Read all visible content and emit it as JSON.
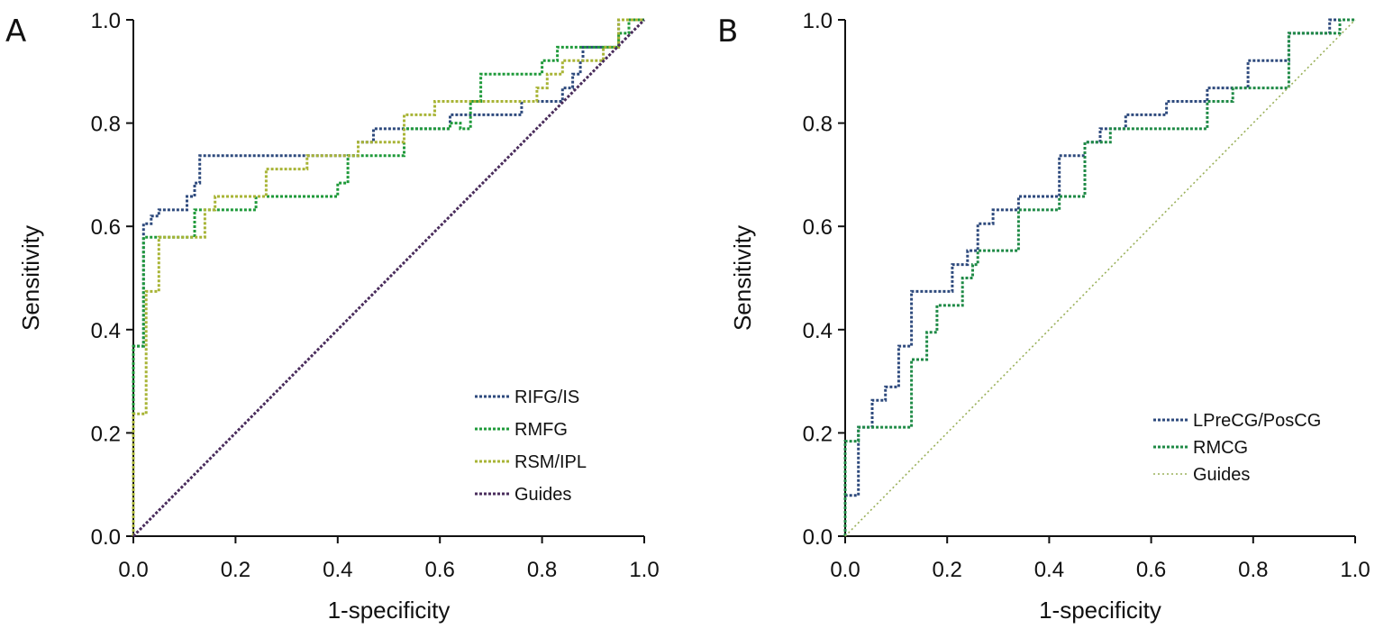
{
  "chart_data": [
    {
      "panel_label": "A",
      "type": "line",
      "xlabel": "1-specificity",
      "ylabel": "Sensitivity",
      "xlim": [
        0,
        1
      ],
      "ylim": [
        0,
        1
      ],
      "ticks": [
        "0.0",
        "0.2",
        "0.4",
        "0.6",
        "0.8",
        "1.0"
      ],
      "legend_position": "bottom-right",
      "grid": false,
      "series": [
        {
          "name": "RIFG/IS",
          "color": "#2e4a7d",
          "points": [
            [
              0,
              0
            ],
            [
              0,
              0.368
            ],
            [
              0.02,
              0.368
            ],
            [
              0.02,
              0.605
            ],
            [
              0.035,
              0.605
            ],
            [
              0.035,
              0.62
            ],
            [
              0.05,
              0.62
            ],
            [
              0.05,
              0.632
            ],
            [
              0.105,
              0.632
            ],
            [
              0.105,
              0.658
            ],
            [
              0.12,
              0.658
            ],
            [
              0.12,
              0.684
            ],
            [
              0.13,
              0.684
            ],
            [
              0.13,
              0.737
            ],
            [
              0.44,
              0.737
            ],
            [
              0.44,
              0.763
            ],
            [
              0.47,
              0.763
            ],
            [
              0.47,
              0.789
            ],
            [
              0.62,
              0.789
            ],
            [
              0.62,
              0.816
            ],
            [
              0.76,
              0.816
            ],
            [
              0.76,
              0.842
            ],
            [
              0.84,
              0.842
            ],
            [
              0.84,
              0.868
            ],
            [
              0.86,
              0.868
            ],
            [
              0.86,
              0.895
            ],
            [
              0.875,
              0.895
            ],
            [
              0.875,
              0.921
            ],
            [
              0.88,
              0.921
            ],
            [
              0.88,
              0.947
            ],
            [
              0.95,
              0.947
            ],
            [
              0.95,
              1
            ],
            [
              1,
              1
            ]
          ]
        },
        {
          "name": "RMFG",
          "color": "#1f9a3a",
          "points": [
            [
              0,
              0
            ],
            [
              0,
              0.368
            ],
            [
              0.02,
              0.368
            ],
            [
              0.02,
              0.579
            ],
            [
              0.12,
              0.579
            ],
            [
              0.12,
              0.632
            ],
            [
              0.24,
              0.632
            ],
            [
              0.24,
              0.658
            ],
            [
              0.4,
              0.658
            ],
            [
              0.4,
              0.684
            ],
            [
              0.42,
              0.684
            ],
            [
              0.42,
              0.737
            ],
            [
              0.53,
              0.737
            ],
            [
              0.53,
              0.789
            ],
            [
              0.62,
              0.789
            ],
            [
              0.62,
              0.8
            ],
            [
              0.64,
              0.8
            ],
            [
              0.64,
              0.789
            ],
            [
              0.66,
              0.789
            ],
            [
              0.66,
              0.842
            ],
            [
              0.68,
              0.842
            ],
            [
              0.68,
              0.895
            ],
            [
              0.8,
              0.895
            ],
            [
              0.8,
              0.921
            ],
            [
              0.83,
              0.921
            ],
            [
              0.83,
              0.947
            ],
            [
              0.95,
              0.947
            ],
            [
              0.95,
              0.974
            ],
            [
              0.97,
              0.974
            ],
            [
              0.97,
              1
            ],
            [
              1,
              1
            ]
          ]
        },
        {
          "name": "RSM/IPL",
          "color": "#a8b436",
          "points": [
            [
              0,
              0
            ],
            [
              0,
              0.237
            ],
            [
              0.025,
              0.237
            ],
            [
              0.025,
              0.474
            ],
            [
              0.05,
              0.474
            ],
            [
              0.05,
              0.579
            ],
            [
              0.14,
              0.579
            ],
            [
              0.14,
              0.632
            ],
            [
              0.16,
              0.632
            ],
            [
              0.16,
              0.658
            ],
            [
              0.26,
              0.658
            ],
            [
              0.26,
              0.711
            ],
            [
              0.34,
              0.711
            ],
            [
              0.34,
              0.737
            ],
            [
              0.44,
              0.737
            ],
            [
              0.44,
              0.763
            ],
            [
              0.53,
              0.763
            ],
            [
              0.53,
              0.816
            ],
            [
              0.59,
              0.816
            ],
            [
              0.59,
              0.842
            ],
            [
              0.79,
              0.842
            ],
            [
              0.79,
              0.868
            ],
            [
              0.81,
              0.868
            ],
            [
              0.81,
              0.895
            ],
            [
              0.84,
              0.895
            ],
            [
              0.84,
              0.921
            ],
            [
              0.92,
              0.921
            ],
            [
              0.92,
              0.947
            ],
            [
              0.95,
              0.947
            ],
            [
              0.95,
              1
            ],
            [
              1,
              1
            ]
          ]
        },
        {
          "name": "Guides",
          "color": "#4a2d5c",
          "points": [
            [
              0,
              0
            ],
            [
              1,
              1
            ]
          ]
        }
      ]
    },
    {
      "panel_label": "B",
      "type": "line",
      "xlabel": "1-specificity",
      "ylabel": "Sensitivity",
      "xlim": [
        0,
        1
      ],
      "ylim": [
        0,
        1
      ],
      "ticks": [
        "0.0",
        "0.2",
        "0.4",
        "0.6",
        "0.8",
        "1.0"
      ],
      "legend_position": "bottom-right",
      "grid": false,
      "series": [
        {
          "name": "LPreCG/PosCG",
          "color": "#2e4a7d",
          "points": [
            [
              0,
              0
            ],
            [
              0,
              0.079
            ],
            [
              0.026,
              0.079
            ],
            [
              0.026,
              0.211
            ],
            [
              0.053,
              0.211
            ],
            [
              0.053,
              0.263
            ],
            [
              0.079,
              0.263
            ],
            [
              0.079,
              0.289
            ],
            [
              0.105,
              0.289
            ],
            [
              0.105,
              0.368
            ],
            [
              0.13,
              0.368
            ],
            [
              0.13,
              0.474
            ],
            [
              0.21,
              0.474
            ],
            [
              0.21,
              0.526
            ],
            [
              0.24,
              0.526
            ],
            [
              0.24,
              0.553
            ],
            [
              0.26,
              0.553
            ],
            [
              0.26,
              0.605
            ],
            [
              0.29,
              0.605
            ],
            [
              0.29,
              0.632
            ],
            [
              0.34,
              0.632
            ],
            [
              0.34,
              0.658
            ],
            [
              0.42,
              0.658
            ],
            [
              0.42,
              0.737
            ],
            [
              0.47,
              0.737
            ],
            [
              0.47,
              0.763
            ],
            [
              0.5,
              0.763
            ],
            [
              0.5,
              0.789
            ],
            [
              0.55,
              0.789
            ],
            [
              0.55,
              0.816
            ],
            [
              0.63,
              0.816
            ],
            [
              0.63,
              0.842
            ],
            [
              0.71,
              0.842
            ],
            [
              0.71,
              0.868
            ],
            [
              0.79,
              0.868
            ],
            [
              0.79,
              0.921
            ],
            [
              0.87,
              0.921
            ],
            [
              0.87,
              0.974
            ],
            [
              0.95,
              0.974
            ],
            [
              0.95,
              1
            ],
            [
              1,
              1
            ]
          ]
        },
        {
          "name": "RMCG",
          "color": "#1f8a46",
          "points": [
            [
              0,
              0
            ],
            [
              0,
              0.184
            ],
            [
              0.026,
              0.184
            ],
            [
              0.026,
              0.211
            ],
            [
              0.13,
              0.211
            ],
            [
              0.13,
              0.342
            ],
            [
              0.16,
              0.342
            ],
            [
              0.16,
              0.395
            ],
            [
              0.18,
              0.395
            ],
            [
              0.18,
              0.447
            ],
            [
              0.23,
              0.447
            ],
            [
              0.23,
              0.5
            ],
            [
              0.25,
              0.5
            ],
            [
              0.25,
              0.526
            ],
            [
              0.26,
              0.526
            ],
            [
              0.26,
              0.553
            ],
            [
              0.34,
              0.553
            ],
            [
              0.34,
              0.632
            ],
            [
              0.42,
              0.632
            ],
            [
              0.42,
              0.658
            ],
            [
              0.47,
              0.658
            ],
            [
              0.47,
              0.763
            ],
            [
              0.52,
              0.763
            ],
            [
              0.52,
              0.789
            ],
            [
              0.71,
              0.789
            ],
            [
              0.71,
              0.842
            ],
            [
              0.76,
              0.842
            ],
            [
              0.76,
              0.868
            ],
            [
              0.87,
              0.868
            ],
            [
              0.87,
              0.974
            ],
            [
              0.97,
              0.974
            ],
            [
              0.97,
              1
            ],
            [
              1,
              1
            ]
          ]
        },
        {
          "name": "Guides",
          "color": "#9ab05a",
          "points": [
            [
              0,
              0
            ],
            [
              1,
              1
            ]
          ]
        }
      ]
    }
  ]
}
